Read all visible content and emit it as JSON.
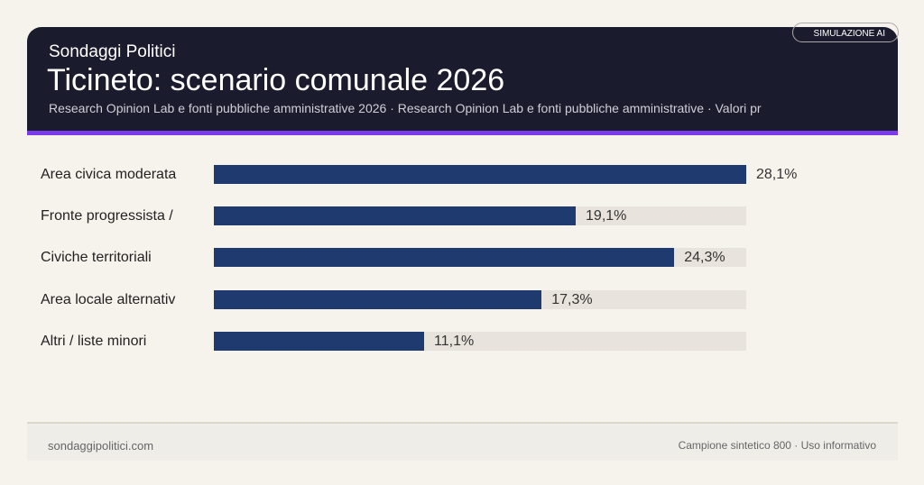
{
  "header": {
    "brand": "Sondaggi Politici",
    "title": "Ticineto: scenario comunale 2026",
    "subtitle": "Research Opinion Lab e fonti pubbliche amministrative 2026 · Research Opinion Lab e fonti pubbliche amministrative · Valori pr",
    "badge": "SIMULAZIONE AI"
  },
  "chart_data": {
    "type": "bar",
    "orientation": "horizontal",
    "categories": [
      "Area civica moderata",
      "Fronte progressista /",
      "Civiche territoriali",
      "Area locale alternativ",
      "Altri / liste minori"
    ],
    "values": [
      28.1,
      19.1,
      24.3,
      17.3,
      11.1
    ],
    "labels": [
      "28,1%",
      "19,1%",
      "24,3%",
      "17,3%",
      "11,1%"
    ],
    "xlim": [
      0,
      28.1
    ],
    "bar_color": "#1e3a6e",
    "track_color": "#e8e3dc"
  },
  "footer": {
    "left": "sondaggipolitici.com",
    "right": "Campione sintetico 800 · Uso informativo"
  },
  "colors": {
    "header_bg": "#1b1b2e",
    "accent": "#7c3aed",
    "background": "#f6f2ec"
  }
}
